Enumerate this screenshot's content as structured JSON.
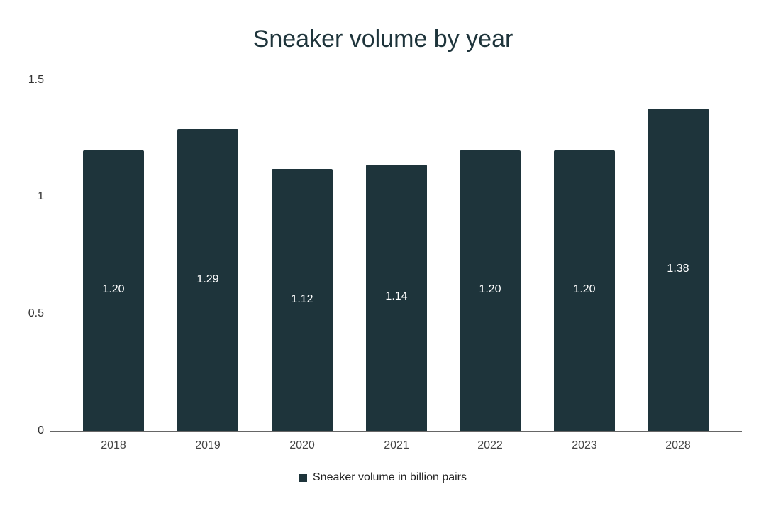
{
  "chart_data": {
    "type": "bar",
    "title": "Sneaker volume by year",
    "categories": [
      "2018",
      "2019",
      "2020",
      "2021",
      "2022",
      "2023",
      "2028"
    ],
    "series": [
      {
        "name": "Sneaker volume in billion pairs",
        "values": [
          1.2,
          1.29,
          1.12,
          1.14,
          1.2,
          1.2,
          1.38
        ],
        "color": "#1e343b"
      }
    ],
    "data_labels": [
      "1.20",
      "1.29",
      "1.12",
      "1.14",
      "1.20",
      "1.20",
      "1.38"
    ],
    "xlabel": "",
    "ylabel": "",
    "ylim": [
      0,
      1.5
    ],
    "yticks": [
      "0",
      "0.5",
      "1",
      "1.5"
    ],
    "grid": false,
    "legend_position": "bottom"
  }
}
